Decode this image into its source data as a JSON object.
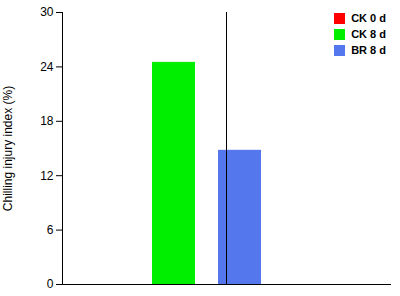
{
  "chart_data": {
    "type": "bar",
    "categories": [
      "CK 0 d",
      "CK 8 d",
      "BR 8 d"
    ],
    "values": [
      0.0,
      24.5,
      14.8
    ],
    "colors": [
      "#ff0000",
      "#00ee00",
      "#5577ee"
    ],
    "ylabel": "Chilling injury index (%)",
    "ylim": [
      0,
      30
    ],
    "yticks": [
      0,
      6,
      12,
      18,
      24,
      30
    ],
    "legend": "upper right",
    "tick_labels": "y"
  }
}
